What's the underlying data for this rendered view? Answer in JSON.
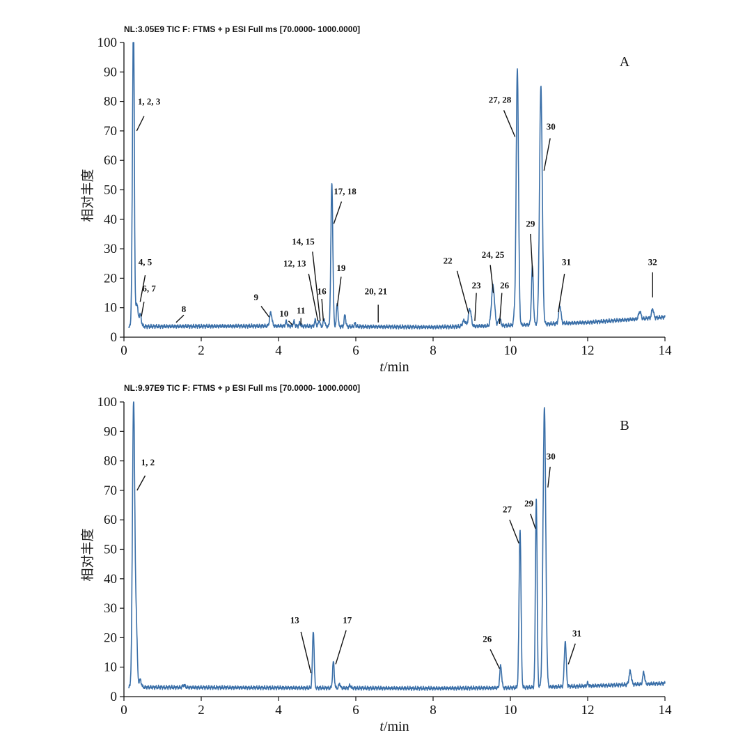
{
  "chart_data": [
    {
      "type": "line",
      "panel": "A",
      "header": "NL:3.05E9 TIC F: FTMS + p ESI Full ms [70.0000- 1000.0000]",
      "xlabel_italic": "t",
      "xlabel_rest": "/min",
      "ylabel": "相对丰度",
      "xlim": [
        0,
        14
      ],
      "ylim": [
        0,
        100
      ],
      "xticks": [
        0,
        2,
        4,
        6,
        8,
        10,
        12,
        14
      ],
      "yticks": [
        0,
        10,
        20,
        30,
        40,
        50,
        60,
        70,
        80,
        90,
        100
      ],
      "xtick_labels": [
        "0",
        "2",
        "4",
        "6",
        "8",
        "10",
        "12",
        "14"
      ],
      "ytick_labels": [
        "0",
        "10",
        "20",
        "30",
        "40",
        "50",
        "60",
        "70",
        "80",
        "90",
        "100"
      ],
      "series_color": "#3a6fa8",
      "series": [
        {
          "baseline": [
            [
              0,
              3.6
            ],
            [
              4,
              3.8
            ],
            [
              8,
              3.4
            ],
            [
              10,
              4.0
            ],
            [
              12,
              5.0
            ],
            [
              14,
              6.8
            ]
          ],
          "peaks": [
            {
              "t": 0.25,
              "h": 96.0,
              "w": 0.02
            },
            {
              "t": 0.22,
              "h": 30.0,
              "w": 0.02
            },
            {
              "t": 0.33,
              "h": 8.0,
              "w": 0.03
            },
            {
              "t": 0.42,
              "h": 4.0,
              "w": 0.03
            },
            {
              "t": 3.8,
              "h": 4.5,
              "w": 0.03
            },
            {
              "t": 4.2,
              "h": 1.5,
              "w": 0.02
            },
            {
              "t": 4.4,
              "h": 1.5,
              "w": 0.02
            },
            {
              "t": 4.55,
              "h": 1.0,
              "w": 0.02
            },
            {
              "t": 4.95,
              "h": 2.0,
              "w": 0.02
            },
            {
              "t": 5.05,
              "h": 2.0,
              "w": 0.02
            },
            {
              "t": 5.18,
              "h": 2.5,
              "w": 0.02
            },
            {
              "t": 5.38,
              "h": 48.5,
              "w": 0.025
            },
            {
              "t": 5.52,
              "h": 8.0,
              "w": 0.02
            },
            {
              "t": 5.72,
              "h": 4.0,
              "w": 0.02
            },
            {
              "t": 5.98,
              "h": 1.0,
              "w": 0.02
            },
            {
              "t": 8.8,
              "h": 2.0,
              "w": 0.04
            },
            {
              "t": 8.95,
              "h": 6.0,
              "w": 0.035
            },
            {
              "t": 9.55,
              "h": 13.5,
              "w": 0.04
            },
            {
              "t": 9.72,
              "h": 2.5,
              "w": 0.03
            },
            {
              "t": 10.1,
              "h": 3.0,
              "w": 0.02
            },
            {
              "t": 10.18,
              "h": 87.0,
              "w": 0.03
            },
            {
              "t": 10.57,
              "h": 19.5,
              "w": 0.025
            },
            {
              "t": 10.79,
              "h": 80.5,
              "w": 0.035
            },
            {
              "t": 11.28,
              "h": 6.0,
              "w": 0.03
            },
            {
              "t": 13.35,
              "h": 2.5,
              "w": 0.03
            },
            {
              "t": 13.68,
              "h": 3.2,
              "w": 0.025
            }
          ]
        }
      ],
      "annotations": [
        {
          "label": "1, 2, 3",
          "text_t": 0.65,
          "text_y": 79,
          "line": [
            [
              0.52,
              75
            ],
            [
              0.33,
              70
            ]
          ]
        },
        {
          "label": "4, 5",
          "text_t": 0.55,
          "text_y": 24.5,
          "line": [
            [
              0.55,
              21
            ],
            [
              0.42,
              12
            ]
          ]
        },
        {
          "label": "6, 7",
          "text_t": 0.65,
          "text_y": 15.5,
          "line": [
            [
              0.52,
              12
            ],
            [
              0.45,
              7
            ]
          ]
        },
        {
          "label": "8",
          "text_t": 1.55,
          "text_y": 8.5,
          "line": [
            [
              1.55,
              7.5
            ],
            [
              1.35,
              5
            ]
          ]
        },
        {
          "label": "9",
          "text_t": 3.42,
          "text_y": 12.5,
          "line": [
            [
              3.55,
              10.5
            ],
            [
              3.76,
              6.8
            ]
          ]
        },
        {
          "label": "10",
          "text_t": 4.14,
          "text_y": 7.0,
          "line": [
            [
              4.26,
              5.5
            ],
            [
              4.36,
              4.2
            ]
          ]
        },
        {
          "label": "11",
          "text_t": 4.58,
          "text_y": 8.0,
          "line": [
            [
              4.58,
              6.5
            ],
            [
              4.58,
              4.2
            ]
          ]
        },
        {
          "label": "12, 13",
          "text_t": 4.42,
          "text_y": 24.0,
          "line": [
            [
              4.78,
              21.5
            ],
            [
              5.02,
              5.5
            ]
          ]
        },
        {
          "label": "14, 15",
          "text_t": 4.64,
          "text_y": 31.5,
          "line": [
            [
              4.88,
              29
            ],
            [
              5.08,
              5.5
            ]
          ]
        },
        {
          "label": "16",
          "text_t": 5.12,
          "text_y": 14.5,
          "line": [
            [
              5.12,
              13
            ],
            [
              5.16,
              5.5
            ]
          ]
        },
        {
          "label": "17, 18",
          "text_t": 5.72,
          "text_y": 48.5,
          "line": [
            [
              5.63,
              46
            ],
            [
              5.43,
              38.5
            ]
          ]
        },
        {
          "label": "19",
          "text_t": 5.62,
          "text_y": 22.5,
          "line": [
            [
              5.62,
              20.5
            ],
            [
              5.52,
              10.5
            ]
          ]
        },
        {
          "label": "20, 21",
          "text_t": 6.52,
          "text_y": 14.5,
          "line": [
            [
              6.58,
              11
            ],
            [
              6.58,
              5
            ]
          ]
        },
        {
          "label": "22",
          "text_t": 8.38,
          "text_y": 25.0,
          "line": [
            [
              8.62,
              22.5
            ],
            [
              8.92,
              8
            ]
          ]
        },
        {
          "label": "23",
          "text_t": 9.12,
          "text_y": 16.5,
          "line": [
            [
              9.12,
              15
            ],
            [
              9.08,
              5.5
            ]
          ]
        },
        {
          "label": "24, 25",
          "text_t": 9.55,
          "text_y": 27.0,
          "line": [
            [
              9.48,
              24.5
            ],
            [
              9.56,
              15
            ]
          ]
        },
        {
          "label": "26",
          "text_t": 9.85,
          "text_y": 16.5,
          "line": [
            [
              9.78,
              15
            ],
            [
              9.72,
              4.5
            ]
          ]
        },
        {
          "label": "27, 28",
          "text_t": 9.73,
          "text_y": 79.5,
          "line": [
            [
              9.83,
              77
            ],
            [
              10.12,
              68
            ]
          ]
        },
        {
          "label": "29",
          "text_t": 10.52,
          "text_y": 37.5,
          "line": [
            [
              10.52,
              35
            ],
            [
              10.58,
              20.5
            ]
          ]
        },
        {
          "label": "30",
          "text_t": 11.05,
          "text_y": 70.5,
          "line": [
            [
              11.03,
              67.5
            ],
            [
              10.87,
              56.5
            ]
          ]
        },
        {
          "label": "31",
          "text_t": 11.45,
          "text_y": 24.5,
          "line": [
            [
              11.4,
              21.5
            ],
            [
              11.24,
              8.5
            ]
          ]
        },
        {
          "label": "32",
          "text_t": 13.68,
          "text_y": 24.5,
          "line": [
            [
              13.68,
              22
            ],
            [
              13.68,
              13.5
            ]
          ]
        }
      ]
    },
    {
      "type": "line",
      "panel": "B",
      "header": "NL:9.97E9 TIC F: FTMS + p ESI Full ms [70.0000- 1000.0000]",
      "xlabel_italic": "t",
      "xlabel_rest": "/min",
      "ylabel": "相对丰度",
      "xlim": [
        0,
        14
      ],
      "ylim": [
        0,
        100
      ],
      "xticks": [
        0,
        2,
        4,
        6,
        8,
        10,
        12,
        14
      ],
      "yticks": [
        0,
        10,
        20,
        30,
        40,
        50,
        60,
        70,
        80,
        90,
        100
      ],
      "xtick_labels": [
        "0",
        "2",
        "4",
        "6",
        "8",
        "10",
        "12",
        "14"
      ],
      "ytick_labels": [
        "0",
        "10",
        "20",
        "30",
        "40",
        "50",
        "60",
        "70",
        "80",
        "90",
        "100"
      ],
      "series_color": "#3a6fa8",
      "series": [
        {
          "baseline": [
            [
              0,
              3.2
            ],
            [
              4,
              3.0
            ],
            [
              8,
              2.8
            ],
            [
              10,
              3.0
            ],
            [
              12,
              3.6
            ],
            [
              14,
              4.5
            ]
          ],
          "peaks": [
            {
              "t": 0.25,
              "h": 97.5,
              "w": 0.03
            },
            {
              "t": 0.32,
              "h": 20.0,
              "w": 0.025
            },
            {
              "t": 0.42,
              "h": 2.5,
              "w": 0.03
            },
            {
              "t": 1.55,
              "h": 0.8,
              "w": 0.03
            },
            {
              "t": 4.9,
              "h": 19.5,
              "w": 0.022
            },
            {
              "t": 5.42,
              "h": 8.8,
              "w": 0.022
            },
            {
              "t": 5.58,
              "h": 1.5,
              "w": 0.02
            },
            {
              "t": 5.85,
              "h": 1.0,
              "w": 0.02
            },
            {
              "t": 9.75,
              "h": 7.5,
              "w": 0.025
            },
            {
              "t": 10.25,
              "h": 54.0,
              "w": 0.025
            },
            {
              "t": 10.67,
              "h": 64.0,
              "w": 0.022
            },
            {
              "t": 10.88,
              "h": 95.0,
              "w": 0.035
            },
            {
              "t": 11.42,
              "h": 15.5,
              "w": 0.025
            },
            {
              "t": 12.0,
              "h": 1.0,
              "w": 0.02
            },
            {
              "t": 13.1,
              "h": 4.5,
              "w": 0.03
            },
            {
              "t": 13.45,
              "h": 4.0,
              "w": 0.025
            }
          ]
        }
      ],
      "annotations": [
        {
          "label": "1, 2",
          "text_t": 0.62,
          "text_y": 78.5,
          "line": [
            [
              0.55,
              75
            ],
            [
              0.34,
              70
            ]
          ]
        },
        {
          "label": "13",
          "text_t": 4.42,
          "text_y": 25.0,
          "line": [
            [
              4.58,
              22
            ],
            [
              4.84,
              8
            ]
          ]
        },
        {
          "label": "17",
          "text_t": 5.78,
          "text_y": 25.0,
          "line": [
            [
              5.75,
              22.5
            ],
            [
              5.48,
              11
            ]
          ]
        },
        {
          "label": "26",
          "text_t": 9.4,
          "text_y": 18.5,
          "line": [
            [
              9.48,
              16
            ],
            [
              9.72,
              9.5
            ]
          ]
        },
        {
          "label": "27",
          "text_t": 9.92,
          "text_y": 62.5,
          "line": [
            [
              9.98,
              60
            ],
            [
              10.22,
              52
            ]
          ]
        },
        {
          "label": "29",
          "text_t": 10.48,
          "text_y": 64.5,
          "line": [
            [
              10.52,
              62
            ],
            [
              10.65,
              57
            ]
          ]
        },
        {
          "label": "30",
          "text_t": 11.05,
          "text_y": 80.5,
          "line": [
            [
              11.03,
              78
            ],
            [
              10.97,
              71
            ]
          ]
        },
        {
          "label": "31",
          "text_t": 11.72,
          "text_y": 20.5,
          "line": [
            [
              11.68,
              18
            ],
            [
              11.5,
              11
            ]
          ]
        }
      ]
    }
  ]
}
